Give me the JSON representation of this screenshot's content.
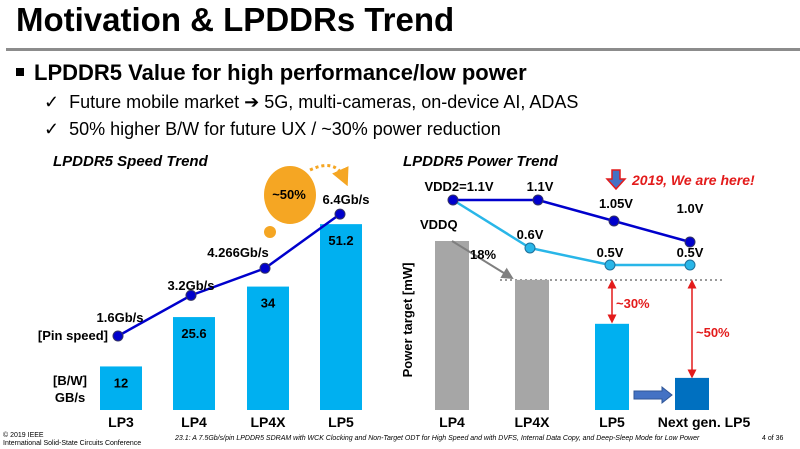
{
  "slide": {
    "title": "Motivation & LPDDRs Trend",
    "bullet": "LPDDR5 Value for high performance/low power",
    "sub_bullets": [
      {
        "check": "✓",
        "text": "Future mobile market ➔ 5G, multi-cameras, on-device AI, ADAS"
      },
      {
        "check": "✓",
        "text": "50% higher B/W for future UX / ~30% power reduction"
      }
    ]
  },
  "chart_data": [
    {
      "type": "bar",
      "title": "LPDDR5 Speed Trend",
      "categories": [
        "LP3",
        "LP4",
        "LP4X",
        "LP5"
      ],
      "series": [
        {
          "name": "[B/W] GB/s",
          "type": "bar",
          "values": [
            12,
            25.6,
            34,
            51.2
          ],
          "labels": [
            "12",
            "25.6",
            "34",
            "51.2"
          ],
          "color": "#00b0f0"
        },
        {
          "name": "[Pin speed]",
          "type": "line",
          "values": [
            1.6,
            3.2,
            4.266,
            6.4
          ],
          "labels": [
            "1.6Gb/s",
            "3.2Gb/s",
            "4.266Gb/s",
            "6.4Gb/s"
          ],
          "color": "#0000cc"
        }
      ],
      "bw_label_line1": "[B/W]",
      "bw_label_line2": "GB/s",
      "pin_label": "[Pin speed]",
      "annotation": "~50%",
      "annotation_color": "#f5a623"
    },
    {
      "type": "bar",
      "title": "LPDDR5 Power Trend",
      "ylabel": "Power target [mW]",
      "categories": [
        "LP4",
        "LP4X",
        "LP5",
        "Next gen. LP5"
      ],
      "bars_relative": [
        1.0,
        0.77,
        0.51,
        0.19
      ],
      "bar_colors": [
        "#a6a6a6",
        "#a6a6a6",
        "#00b0f0",
        "#0070c0"
      ],
      "series": [
        {
          "name": "VDD2",
          "values": [
            1.1,
            1.1,
            1.05,
            1.0
          ],
          "labels": [
            "VDD2=1.1V",
            "1.1V",
            "1.05V",
            "1.0V"
          ],
          "color": "#0000cc"
        },
        {
          "name": "VDDQ",
          "values": [
            1.1,
            0.6,
            0.5,
            0.5
          ],
          "labels": [
            "",
            "0.6V",
            "0.5V",
            "0.5V"
          ],
          "color": "#29b6e8"
        }
      ],
      "vddq_label": "VDDQ",
      "annotations": {
        "lp4_to_lp4x": "18%",
        "lp5": "~30%",
        "next_gen": "~50%",
        "marker": "2019, We are here!"
      },
      "annotation_color": "#e31b1b"
    }
  ],
  "footer": {
    "copyright": "© 2019 IEEE",
    "conference": "International Solid-State Circuits Conference",
    "paper": "23.1: A 7.5Gb/s/pin LPDDR5 SDRAM with WCK Clocking and Non-Target ODT for High Speed and with DVFS, Internal Data Copy, and Deep-Sleep Mode for Low Power",
    "page": "4 of 36"
  }
}
